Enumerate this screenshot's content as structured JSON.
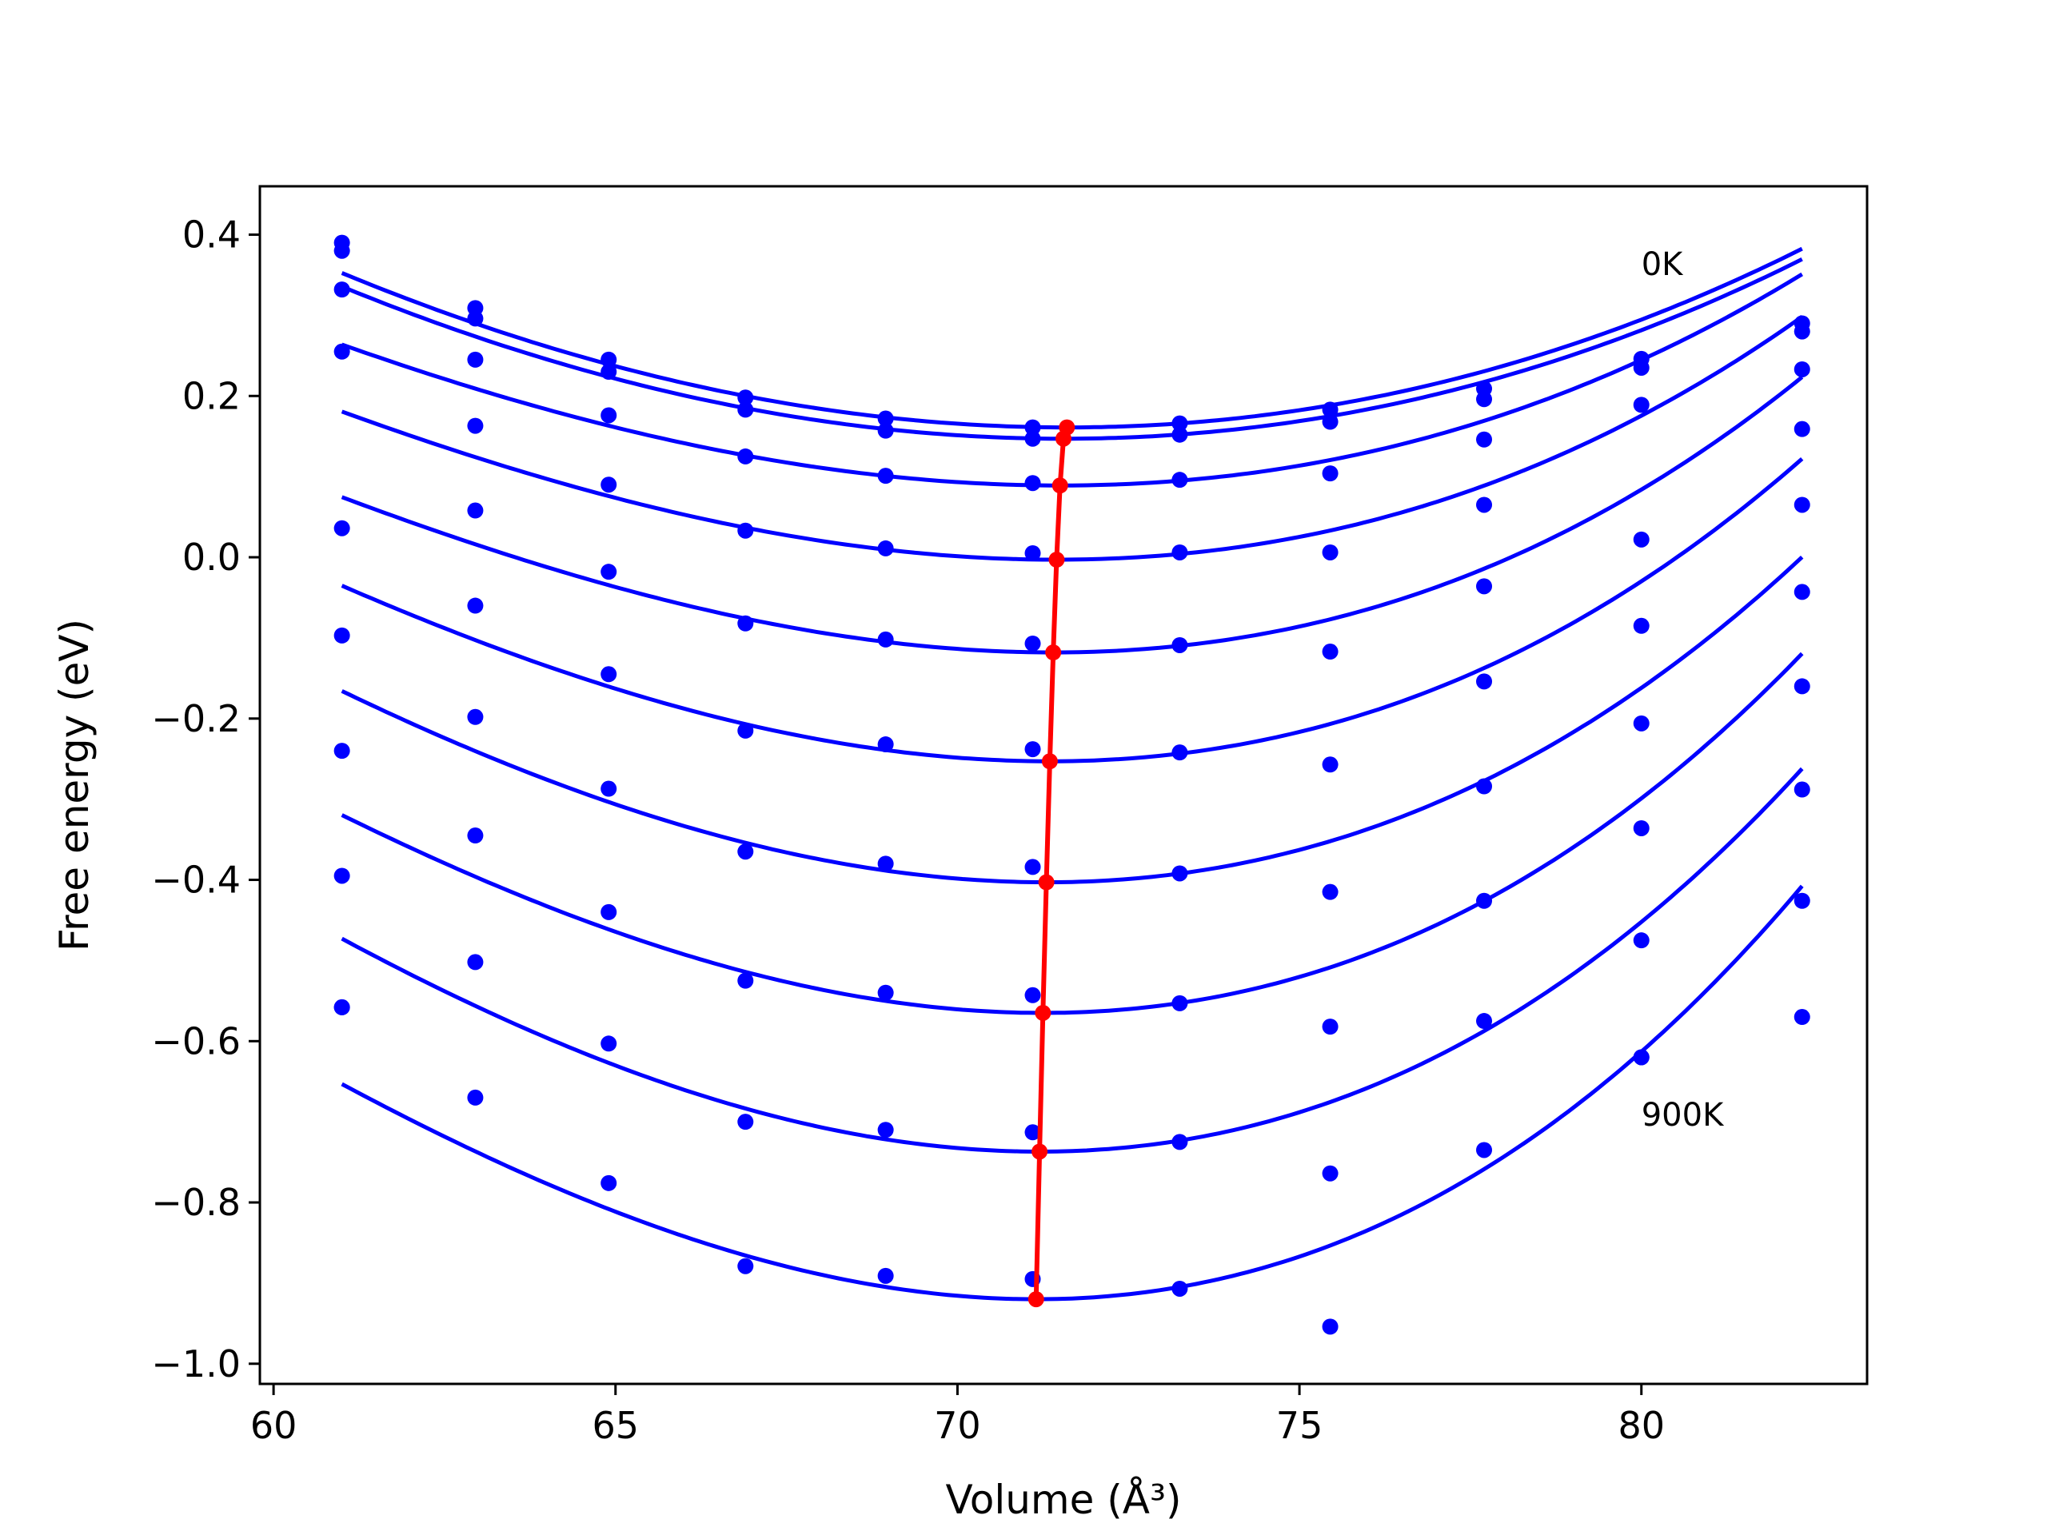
{
  "chart_data": {
    "type": "scatter",
    "xlabel": "Volume (Å³)",
    "ylabel": "Free energy (eV)",
    "xlim": [
      59.8,
      83.3
    ],
    "ylim": [
      -1.025,
      0.46
    ],
    "x_ticks": [
      {
        "value": 60,
        "label": "60"
      },
      {
        "value": 65,
        "label": "65"
      },
      {
        "value": 70,
        "label": "70"
      },
      {
        "value": 75,
        "label": "75"
      },
      {
        "value": 80,
        "label": "80"
      }
    ],
    "y_ticks": [
      {
        "value": 0.4,
        "label": "0.4"
      },
      {
        "value": 0.2,
        "label": "0.2"
      },
      {
        "value": 0.0,
        "label": "0.0"
      },
      {
        "value": -0.2,
        "label": "−0.2"
      },
      {
        "value": -0.4,
        "label": "−0.4"
      },
      {
        "value": -0.6,
        "label": "−0.6"
      },
      {
        "value": -0.8,
        "label": "−0.8"
      },
      {
        "value": -1.0,
        "label": "−1.0"
      }
    ],
    "grid": false,
    "legend": "none",
    "annotations": [
      {
        "text": "0K",
        "x": 80.0,
        "y": 0.35
      },
      {
        "text": "900K",
        "x": 80.0,
        "y": -0.705
      }
    ],
    "volumes": [
      61.0,
      62.95,
      64.9,
      66.9,
      68.95,
      71.1,
      73.25,
      75.45,
      77.7,
      80.0,
      82.35
    ],
    "point_series": [
      {
        "y": [
          0.39,
          0.309,
          0.245,
          0.198,
          0.172,
          0.161,
          0.166,
          0.183,
          0.209,
          0.246,
          0.29
        ]
      },
      {
        "y": [
          0.38,
          0.296,
          0.23,
          0.183,
          0.157,
          0.147,
          0.152,
          0.168,
          0.196,
          0.235,
          0.28
        ]
      },
      {
        "y": [
          0.332,
          0.245,
          0.176,
          0.125,
          0.101,
          0.092,
          0.096,
          0.104,
          0.146,
          0.189,
          0.233
        ]
      },
      {
        "y": [
          0.255,
          0.163,
          0.09,
          0.033,
          0.011,
          0.005,
          0.006,
          0.006,
          0.065,
          0.022,
          0.159
        ]
      },
      {
        "y": [
          0.036,
          0.058,
          -0.018,
          -0.082,
          -0.102,
          -0.107,
          -0.109,
          -0.117,
          -0.036,
          -0.085,
          0.065
        ]
      },
      {
        "y": [
          -0.097,
          -0.06,
          -0.145,
          -0.215,
          -0.232,
          -0.238,
          -0.242,
          -0.257,
          -0.154,
          -0.206,
          -0.043
        ]
      },
      {
        "y": [
          -0.24,
          -0.198,
          -0.287,
          -0.365,
          -0.38,
          -0.384,
          -0.392,
          -0.415,
          -0.284,
          -0.336,
          -0.16
        ]
      },
      {
        "y": [
          -0.395,
          -0.345,
          -0.44,
          -0.525,
          -0.54,
          -0.543,
          -0.553,
          -0.582,
          -0.426,
          -0.475,
          -0.288
        ]
      },
      {
        "y": [
          -0.558,
          -0.502,
          -0.603,
          -0.7,
          -0.71,
          -0.713,
          -0.725,
          -0.764,
          -0.575,
          -0.62,
          -0.426
        ]
      },
      {
        "y": [
          -0.558,
          -0.67,
          -0.776,
          -0.879,
          -0.891,
          -0.895,
          -0.907,
          -0.954,
          -0.735,
          -0.62,
          -0.57
        ]
      }
    ],
    "fit_curves": [
      {
        "v0": 71.6,
        "e0": 0.161,
        "a": 0.00181,
        "b": 1e-05
      },
      {
        "v0": 71.55,
        "e0": 0.147,
        "a": 0.0018,
        "b": 1e-05
      },
      {
        "v0": 71.5,
        "e0": 0.089,
        "a": 0.0019,
        "b": 3e-05
      },
      {
        "v0": 71.45,
        "e0": -0.003,
        "a": 0.0021,
        "b": 4e-05
      },
      {
        "v0": 71.4,
        "e0": -0.118,
        "a": 0.0023,
        "b": 5e-05
      },
      {
        "v0": 71.35,
        "e0": -0.253,
        "a": 0.00255,
        "b": 5e-05
      },
      {
        "v0": 71.3,
        "e0": -0.403,
        "a": 0.00275,
        "b": 5e-05
      },
      {
        "v0": 71.25,
        "e0": -0.565,
        "a": 0.00295,
        "b": 6e-05
      },
      {
        "v0": 71.2,
        "e0": -0.737,
        "a": 0.00315,
        "b": 6e-05
      },
      {
        "v0": 71.15,
        "e0": -0.92,
        "a": 0.0033,
        "b": 7e-05
      }
    ],
    "minimum_line": {
      "x": [
        71.6,
        71.55,
        71.5,
        71.45,
        71.4,
        71.35,
        71.3,
        71.25,
        71.2,
        71.15
      ],
      "y": [
        0.161,
        0.147,
        0.089,
        -0.003,
        -0.118,
        -0.253,
        -0.403,
        -0.565,
        -0.737,
        -0.92
      ]
    },
    "colors": {
      "points": "#0000ff",
      "curves": "#0000ff",
      "minimum_line": "#ff0000",
      "axes": "#000000"
    }
  }
}
